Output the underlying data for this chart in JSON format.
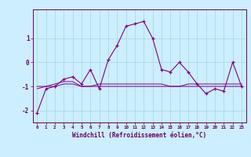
{
  "title": "",
  "xlabel": "Windchill (Refroidissement éolien,°C)",
  "hours": [
    0,
    1,
    2,
    3,
    4,
    5,
    6,
    7,
    8,
    9,
    10,
    11,
    12,
    13,
    14,
    15,
    16,
    17,
    18,
    19,
    20,
    21,
    22,
    23
  ],
  "line1": [
    -2.1,
    -1.1,
    -1.0,
    -0.7,
    -0.6,
    -0.9,
    -0.3,
    -1.1,
    0.1,
    0.7,
    1.5,
    1.6,
    1.7,
    1.0,
    -0.3,
    -0.4,
    0.0,
    -0.4,
    -0.9,
    -1.3,
    -1.1,
    -1.2,
    0.0,
    -1.0
  ],
  "line2": [
    -1.1,
    -1.0,
    -0.9,
    -0.8,
    -0.8,
    -1.0,
    -1.0,
    -1.0,
    -1.0,
    -1.0,
    -1.0,
    -1.0,
    -1.0,
    -1.0,
    -1.0,
    -1.0,
    -1.0,
    -0.9,
    -0.9,
    -0.9,
    -0.9,
    -0.9,
    -0.9,
    -0.9
  ],
  "line3": [
    -1.0,
    -1.0,
    -1.0,
    -0.9,
    -0.9,
    -1.0,
    -1.0,
    -0.9,
    -0.9,
    -0.9,
    -0.9,
    -0.9,
    -0.9,
    -0.9,
    -0.9,
    -1.0,
    -1.0,
    -1.0,
    -1.0,
    -1.0,
    -1.0,
    -1.0,
    -1.0,
    -1.0
  ],
  "line_color": "#800080",
  "bg_color": "#cceeff",
  "grid_color": "#aadddd",
  "ylim": [
    -2.5,
    2.2
  ],
  "yticks": [
    -2,
    -1,
    0,
    1
  ],
  "text_color": "#660066"
}
